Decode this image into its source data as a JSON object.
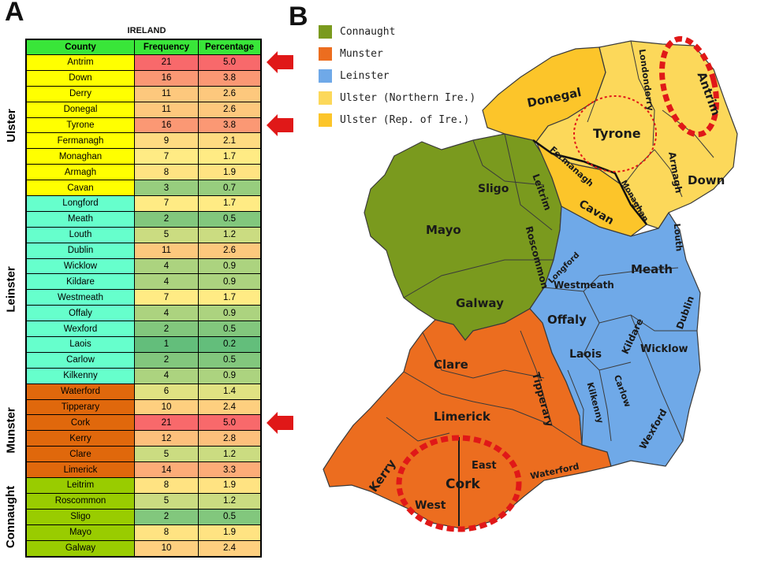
{
  "panel_a_letter": "A",
  "panel_b_letter": "B",
  "table": {
    "title": "IRELAND",
    "headers": [
      "County",
      "Frequency",
      "Percentage"
    ],
    "rows": [
      {
        "county": "Antrim",
        "frequency": "21",
        "percentage": "5.0",
        "province": "Ulster"
      },
      {
        "county": "Down",
        "frequency": "16",
        "percentage": "3.8",
        "province": "Ulster"
      },
      {
        "county": "Derry",
        "frequency": "11",
        "percentage": "2.6",
        "province": "Ulster"
      },
      {
        "county": "Donegal",
        "frequency": "11",
        "percentage": "2.6",
        "province": "Ulster"
      },
      {
        "county": "Tyrone",
        "frequency": "16",
        "percentage": "3.8",
        "province": "Ulster"
      },
      {
        "county": "Fermanagh",
        "frequency": "9",
        "percentage": "2.1",
        "province": "Ulster"
      },
      {
        "county": "Monaghan",
        "frequency": "7",
        "percentage": "1.7",
        "province": "Ulster"
      },
      {
        "county": "Armagh",
        "frequency": "8",
        "percentage": "1.9",
        "province": "Ulster"
      },
      {
        "county": "Cavan",
        "frequency": "3",
        "percentage": "0.7",
        "province": "Ulster"
      },
      {
        "county": "Longford",
        "frequency": "7",
        "percentage": "1.7",
        "province": "Leinster"
      },
      {
        "county": "Meath",
        "frequency": "2",
        "percentage": "0.5",
        "province": "Leinster"
      },
      {
        "county": "Louth",
        "frequency": "5",
        "percentage": "1.2",
        "province": "Leinster"
      },
      {
        "county": "Dublin",
        "frequency": "11",
        "percentage": "2.6",
        "province": "Leinster"
      },
      {
        "county": "Wicklow",
        "frequency": "4",
        "percentage": "0.9",
        "province": "Leinster"
      },
      {
        "county": "Kildare",
        "frequency": "4",
        "percentage": "0.9",
        "province": "Leinster"
      },
      {
        "county": "Westmeath",
        "frequency": "7",
        "percentage": "1.7",
        "province": "Leinster"
      },
      {
        "county": "Offaly",
        "frequency": "4",
        "percentage": "0.9",
        "province": "Leinster"
      },
      {
        "county": "Wexford",
        "frequency": "2",
        "percentage": "0.5",
        "province": "Leinster"
      },
      {
        "county": "Laois",
        "frequency": "1",
        "percentage": "0.2",
        "province": "Leinster"
      },
      {
        "county": "Carlow",
        "frequency": "2",
        "percentage": "0.5",
        "province": "Leinster"
      },
      {
        "county": "Kilkenny",
        "frequency": "4",
        "percentage": "0.9",
        "province": "Leinster"
      },
      {
        "county": "Waterford",
        "frequency": "6",
        "percentage": "1.4",
        "province": "Munster"
      },
      {
        "county": "Tipperary",
        "frequency": "10",
        "percentage": "2.4",
        "province": "Munster"
      },
      {
        "county": "Cork",
        "frequency": "21",
        "percentage": "5.0",
        "province": "Munster"
      },
      {
        "county": "Kerry",
        "frequency": "12",
        "percentage": "2.8",
        "province": "Munster"
      },
      {
        "county": "Clare",
        "frequency": "5",
        "percentage": "1.2",
        "province": "Munster"
      },
      {
        "county": "Limerick",
        "frequency": "14",
        "percentage": "3.3",
        "province": "Munster"
      },
      {
        "county": "Leitrim",
        "frequency": "8",
        "percentage": "1.9",
        "province": "Connaught"
      },
      {
        "county": "Roscommon",
        "frequency": "5",
        "percentage": "1.2",
        "province": "Connaught"
      },
      {
        "county": "Sligo",
        "frequency": "2",
        "percentage": "0.5",
        "province": "Connaught"
      },
      {
        "county": "Mayo",
        "frequency": "8",
        "percentage": "1.9",
        "province": "Connaught"
      },
      {
        "county": "Galway",
        "frequency": "10",
        "percentage": "2.4",
        "province": "Connaught"
      }
    ],
    "provinces": [
      {
        "name": "Ulster",
        "color": "#ffff00"
      },
      {
        "name": "Leinster",
        "color": "#66ffcc"
      },
      {
        "name": "Munster",
        "color": "#e0680c"
      },
      {
        "name": "Connaught",
        "color": "#99cc00"
      }
    ],
    "highlighted_counties": [
      "Antrim",
      "Tyrone",
      "Cork"
    ],
    "heat_colors": {
      "low": "#63be7b",
      "mid": "#ffeb84",
      "high": "#f8696b"
    }
  },
  "map": {
    "legend": [
      {
        "label": "Connaught",
        "color": "#7a9a1e"
      },
      {
        "label": "Munster",
        "color": "#ec6d1f"
      },
      {
        "label": "Leinster",
        "color": "#6fa9e8"
      },
      {
        "label": "Ulster (Northern Ire.)",
        "color": "#fcd85a"
      },
      {
        "label": "Ulster (Rep. of Ire.)",
        "color": "#fcc52a"
      }
    ],
    "labels": {
      "donegal": "Donegal",
      "londonderry": "Londonderry",
      "antrim": "Antrim",
      "tyrone": "Tyrone",
      "fermanagh": "Fermanagh",
      "monaghan": "Monaghan",
      "armagh": "Armagh",
      "down": "Down",
      "cavan": "Cavan",
      "sligo": "Sligo",
      "leitrim": "Leitrim",
      "mayo": "Mayo",
      "roscommon": "Roscommon",
      "galway": "Galway",
      "longford": "Longford",
      "westmeath": "Westmeath",
      "meath": "Meath",
      "louth": "Louth",
      "dublin": "Dublin",
      "offaly": "Offaly",
      "kildare": "Kildare",
      "laois": "Laois",
      "wicklow": "Wicklow",
      "carlow": "Carlow",
      "kilkenny": "Kilkenny",
      "wexford": "Wexford",
      "clare": "Clare",
      "tipperary": "Tipperary",
      "limerick": "Limerick",
      "kerry": "Kerry",
      "cork": "Cork",
      "east": "East",
      "west": "West",
      "waterford": "Waterford"
    },
    "circled_regions": [
      "Antrim",
      "Tyrone",
      "Cork"
    ]
  }
}
